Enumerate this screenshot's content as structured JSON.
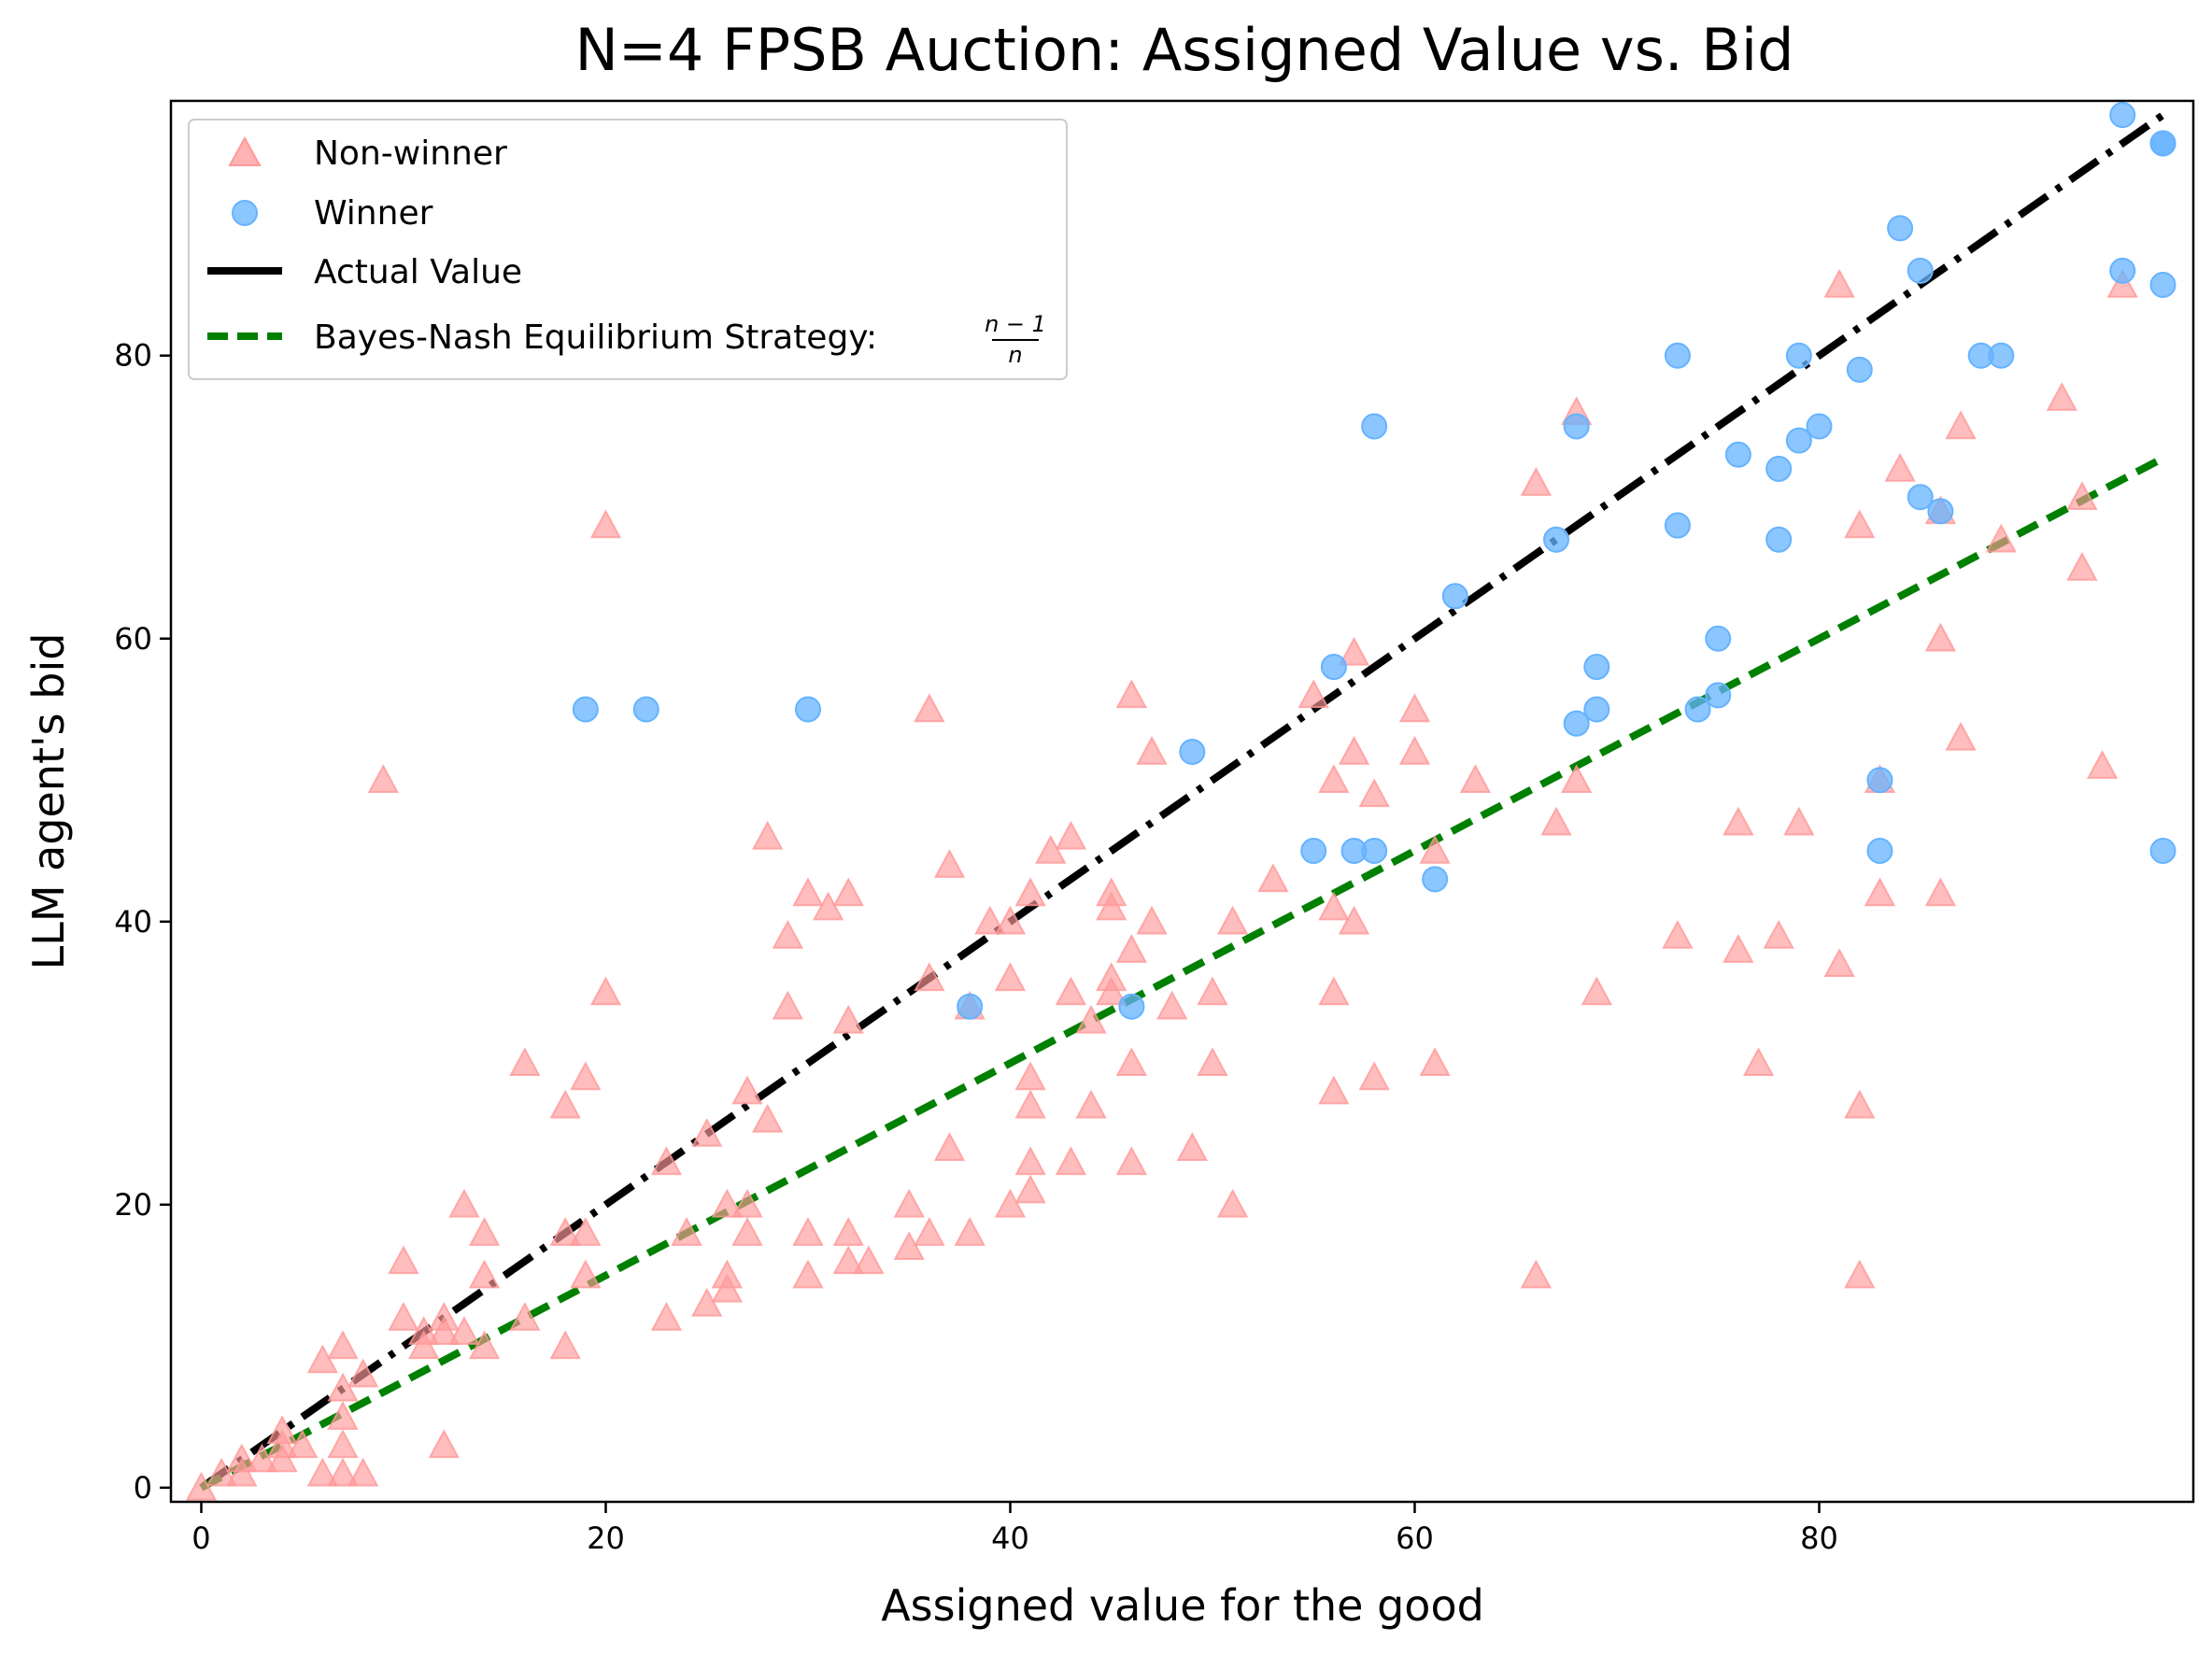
{
  "chart_data": {
    "type": "scatter",
    "title": "N=4 FPSB Auction: Assigned Value vs. Bid",
    "xlabel": "Assigned value for the good",
    "ylabel": "LLM agent's bid",
    "xlim": [
      -1.5,
      98.5
    ],
    "ylim": [
      -1,
      98
    ],
    "xticks": [
      0,
      20,
      40,
      60,
      80
    ],
    "yticks": [
      0,
      20,
      40,
      60,
      80
    ],
    "grid": false,
    "legend_position": "upper-left",
    "colors": {
      "non_winner": "#ff9999",
      "winner": "#66b3ff",
      "actual_value": "#000000",
      "bne": "#008000"
    },
    "series": [
      {
        "name": "Non-winner",
        "kind": "scatter",
        "marker": "triangle",
        "points": [
          [
            0,
            0
          ],
          [
            1,
            1
          ],
          [
            2,
            1
          ],
          [
            2,
            2
          ],
          [
            3,
            2
          ],
          [
            4,
            4
          ],
          [
            4,
            3
          ],
          [
            4,
            2
          ],
          [
            5,
            3
          ],
          [
            6,
            1
          ],
          [
            6,
            9
          ],
          [
            7,
            10
          ],
          [
            7,
            7
          ],
          [
            7,
            5
          ],
          [
            7,
            3
          ],
          [
            7,
            1
          ],
          [
            8,
            8
          ],
          [
            8,
            1
          ],
          [
            9,
            50
          ],
          [
            10,
            16
          ],
          [
            10,
            12
          ],
          [
            11,
            10
          ],
          [
            11,
            11
          ],
          [
            12,
            11
          ],
          [
            12,
            12
          ],
          [
            12,
            3
          ],
          [
            13,
            20
          ],
          [
            13,
            11
          ],
          [
            14,
            18
          ],
          [
            14,
            15
          ],
          [
            14,
            10
          ],
          [
            16,
            30
          ],
          [
            16,
            12
          ],
          [
            18,
            27
          ],
          [
            18,
            18
          ],
          [
            18,
            10
          ],
          [
            19,
            29
          ],
          [
            19,
            18
          ],
          [
            19,
            15
          ],
          [
            20,
            68
          ],
          [
            20,
            35
          ],
          [
            23,
            23
          ],
          [
            23,
            12
          ],
          [
            24,
            18
          ],
          [
            25,
            25
          ],
          [
            25,
            13
          ],
          [
            26,
            20
          ],
          [
            26,
            15
          ],
          [
            26,
            14
          ],
          [
            27,
            28
          ],
          [
            27,
            20
          ],
          [
            27,
            18
          ],
          [
            28,
            46
          ],
          [
            28,
            26
          ],
          [
            29,
            39
          ],
          [
            29,
            34
          ],
          [
            30,
            42
          ],
          [
            30,
            18
          ],
          [
            30,
            15
          ],
          [
            31,
            41
          ],
          [
            32,
            42
          ],
          [
            32,
            33
          ],
          [
            32,
            18
          ],
          [
            32,
            16
          ],
          [
            33,
            16
          ],
          [
            35,
            20
          ],
          [
            35,
            17
          ],
          [
            36,
            55
          ],
          [
            36,
            36
          ],
          [
            36,
            18
          ],
          [
            37,
            44
          ],
          [
            37,
            24
          ],
          [
            38,
            34
          ],
          [
            38,
            18
          ],
          [
            39,
            40
          ],
          [
            40,
            40
          ],
          [
            40,
            36
          ],
          [
            40,
            20
          ],
          [
            41,
            42
          ],
          [
            41,
            29
          ],
          [
            41,
            27
          ],
          [
            41,
            23
          ],
          [
            41,
            21
          ],
          [
            42,
            45
          ],
          [
            43,
            46
          ],
          [
            43,
            35
          ],
          [
            43,
            23
          ],
          [
            44,
            33
          ],
          [
            44,
            27
          ],
          [
            45,
            42
          ],
          [
            45,
            41
          ],
          [
            45,
            36
          ],
          [
            45,
            35
          ],
          [
            46,
            56
          ],
          [
            46,
            38
          ],
          [
            46,
            30
          ],
          [
            46,
            23
          ],
          [
            47,
            52
          ],
          [
            47,
            40
          ],
          [
            48,
            34
          ],
          [
            49,
            24
          ],
          [
            50,
            35
          ],
          [
            50,
            30
          ],
          [
            51,
            40
          ],
          [
            51,
            20
          ],
          [
            53,
            43
          ],
          [
            55,
            56
          ],
          [
            56,
            50
          ],
          [
            56,
            41
          ],
          [
            56,
            35
          ],
          [
            56,
            28
          ],
          [
            57,
            59
          ],
          [
            57,
            52
          ],
          [
            57,
            40
          ],
          [
            58,
            49
          ],
          [
            58,
            29
          ],
          [
            60,
            55
          ],
          [
            60,
            52
          ],
          [
            61,
            45
          ],
          [
            61,
            30
          ],
          [
            63,
            50
          ],
          [
            66,
            71
          ],
          [
            66,
            15
          ],
          [
            67,
            47
          ],
          [
            68,
            76
          ],
          [
            68,
            50
          ],
          [
            69,
            35
          ],
          [
            73,
            39
          ],
          [
            76,
            47
          ],
          [
            76,
            38
          ],
          [
            77,
            30
          ],
          [
            78,
            39
          ],
          [
            79,
            47
          ],
          [
            81,
            85
          ],
          [
            81,
            37
          ],
          [
            82,
            68
          ],
          [
            82,
            27
          ],
          [
            82,
            15
          ],
          [
            83,
            50
          ],
          [
            83,
            42
          ],
          [
            84,
            72
          ],
          [
            86,
            69
          ],
          [
            86,
            60
          ],
          [
            86,
            42
          ],
          [
            87,
            75
          ],
          [
            87,
            53
          ],
          [
            89,
            67
          ],
          [
            92,
            77
          ],
          [
            93,
            70
          ],
          [
            93,
            65
          ],
          [
            94,
            51
          ],
          [
            95,
            85
          ]
        ]
      },
      {
        "name": "Winner",
        "kind": "scatter",
        "marker": "circle",
        "points": [
          [
            19,
            55
          ],
          [
            22,
            55
          ],
          [
            30,
            55
          ],
          [
            38,
            34
          ],
          [
            46,
            34
          ],
          [
            49,
            52
          ],
          [
            55,
            45
          ],
          [
            56,
            58
          ],
          [
            57,
            45
          ],
          [
            58,
            75
          ],
          [
            58,
            45
          ],
          [
            61,
            43
          ],
          [
            62,
            63
          ],
          [
            67,
            67
          ],
          [
            68,
            75
          ],
          [
            68,
            54
          ],
          [
            69,
            58
          ],
          [
            69,
            55
          ],
          [
            73,
            80
          ],
          [
            73,
            68
          ],
          [
            74,
            55
          ],
          [
            75,
            60
          ],
          [
            75,
            56
          ],
          [
            76,
            73
          ],
          [
            78,
            72
          ],
          [
            78,
            67
          ],
          [
            79,
            80
          ],
          [
            79,
            74
          ],
          [
            80,
            75
          ],
          [
            82,
            79
          ],
          [
            83,
            50
          ],
          [
            83,
            45
          ],
          [
            84,
            89
          ],
          [
            85,
            86
          ],
          [
            85,
            70
          ],
          [
            86,
            69
          ],
          [
            88,
            80
          ],
          [
            89,
            80
          ],
          [
            95,
            97
          ],
          [
            95,
            86
          ],
          [
            97,
            95
          ],
          [
            97,
            95
          ],
          [
            97,
            85
          ],
          [
            97,
            45
          ]
        ]
      },
      {
        "name": "Actual Value",
        "kind": "line",
        "style": "dashdot",
        "points": [
          [
            0,
            0
          ],
          [
            97,
            97
          ]
        ]
      },
      {
        "name": "Bayes-Nash Equilibrium Strategy: ",
        "name_fraction": {
          "numerator": "n − 1",
          "denominator": "n"
        },
        "kind": "line",
        "style": "dashed",
        "points": [
          [
            0,
            0
          ],
          [
            97,
            72.75
          ]
        ]
      }
    ]
  }
}
